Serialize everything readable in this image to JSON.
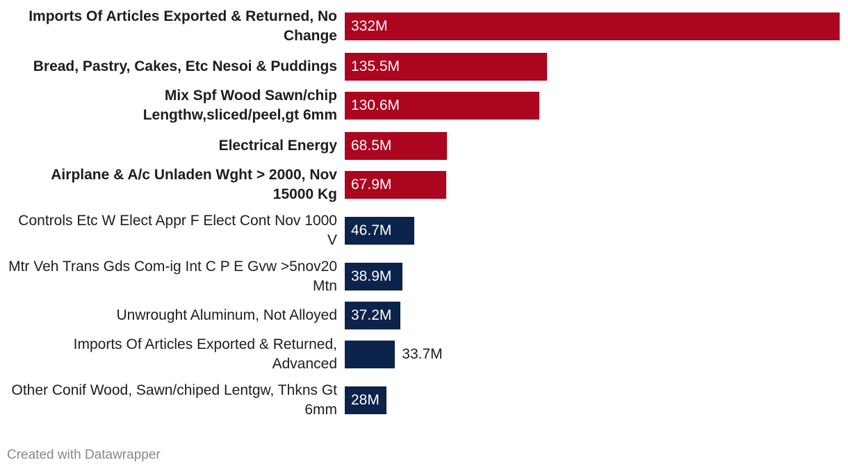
{
  "chart_data": {
    "type": "bar",
    "orientation": "horizontal",
    "categories": [
      "Imports Of Articles Exported & Returned, No Change",
      "Bread, Pastry, Cakes, Etc Nesoi & Puddings",
      "Mix Spf Wood Sawn/chip Lengthw,sliced/peel,gt 6mm",
      "Electrical Energy",
      "Airplane & A/c Unladen Wght > 2000, Nov 15000 Kg",
      "Controls Etc W Elect Appr F Elect Cont Nov 1000 V",
      "Mtr Veh Trans Gds Com-ig Int C P E Gvw >5nov20 Mtn",
      "Unwrought Aluminum, Not Alloyed",
      "Imports Of Articles Exported & Returned, Advanced",
      "Other Conif Wood, Sawn/chiped Lentgw, Thkns Gt 6mm"
    ],
    "values": [
      332,
      135.5,
      130.6,
      68.5,
      67.9,
      46.7,
      38.9,
      37.2,
      33.7,
      28
    ],
    "value_labels": [
      "332M",
      "135.5M",
      "130.6M",
      "68.5M",
      "67.9M",
      "46.7M",
      "38.9M",
      "37.2M",
      "33.7M",
      "28M"
    ],
    "colors": [
      "#ab0520",
      "#ab0520",
      "#ab0520",
      "#ab0520",
      "#ab0520",
      "#0c234b",
      "#0c234b",
      "#0c234b",
      "#0c234b",
      "#0c234b"
    ],
    "bold": [
      true,
      true,
      true,
      true,
      true,
      false,
      false,
      false,
      false,
      false
    ],
    "xlim": [
      0,
      332
    ],
    "credit": "Created with Datawrapper"
  }
}
